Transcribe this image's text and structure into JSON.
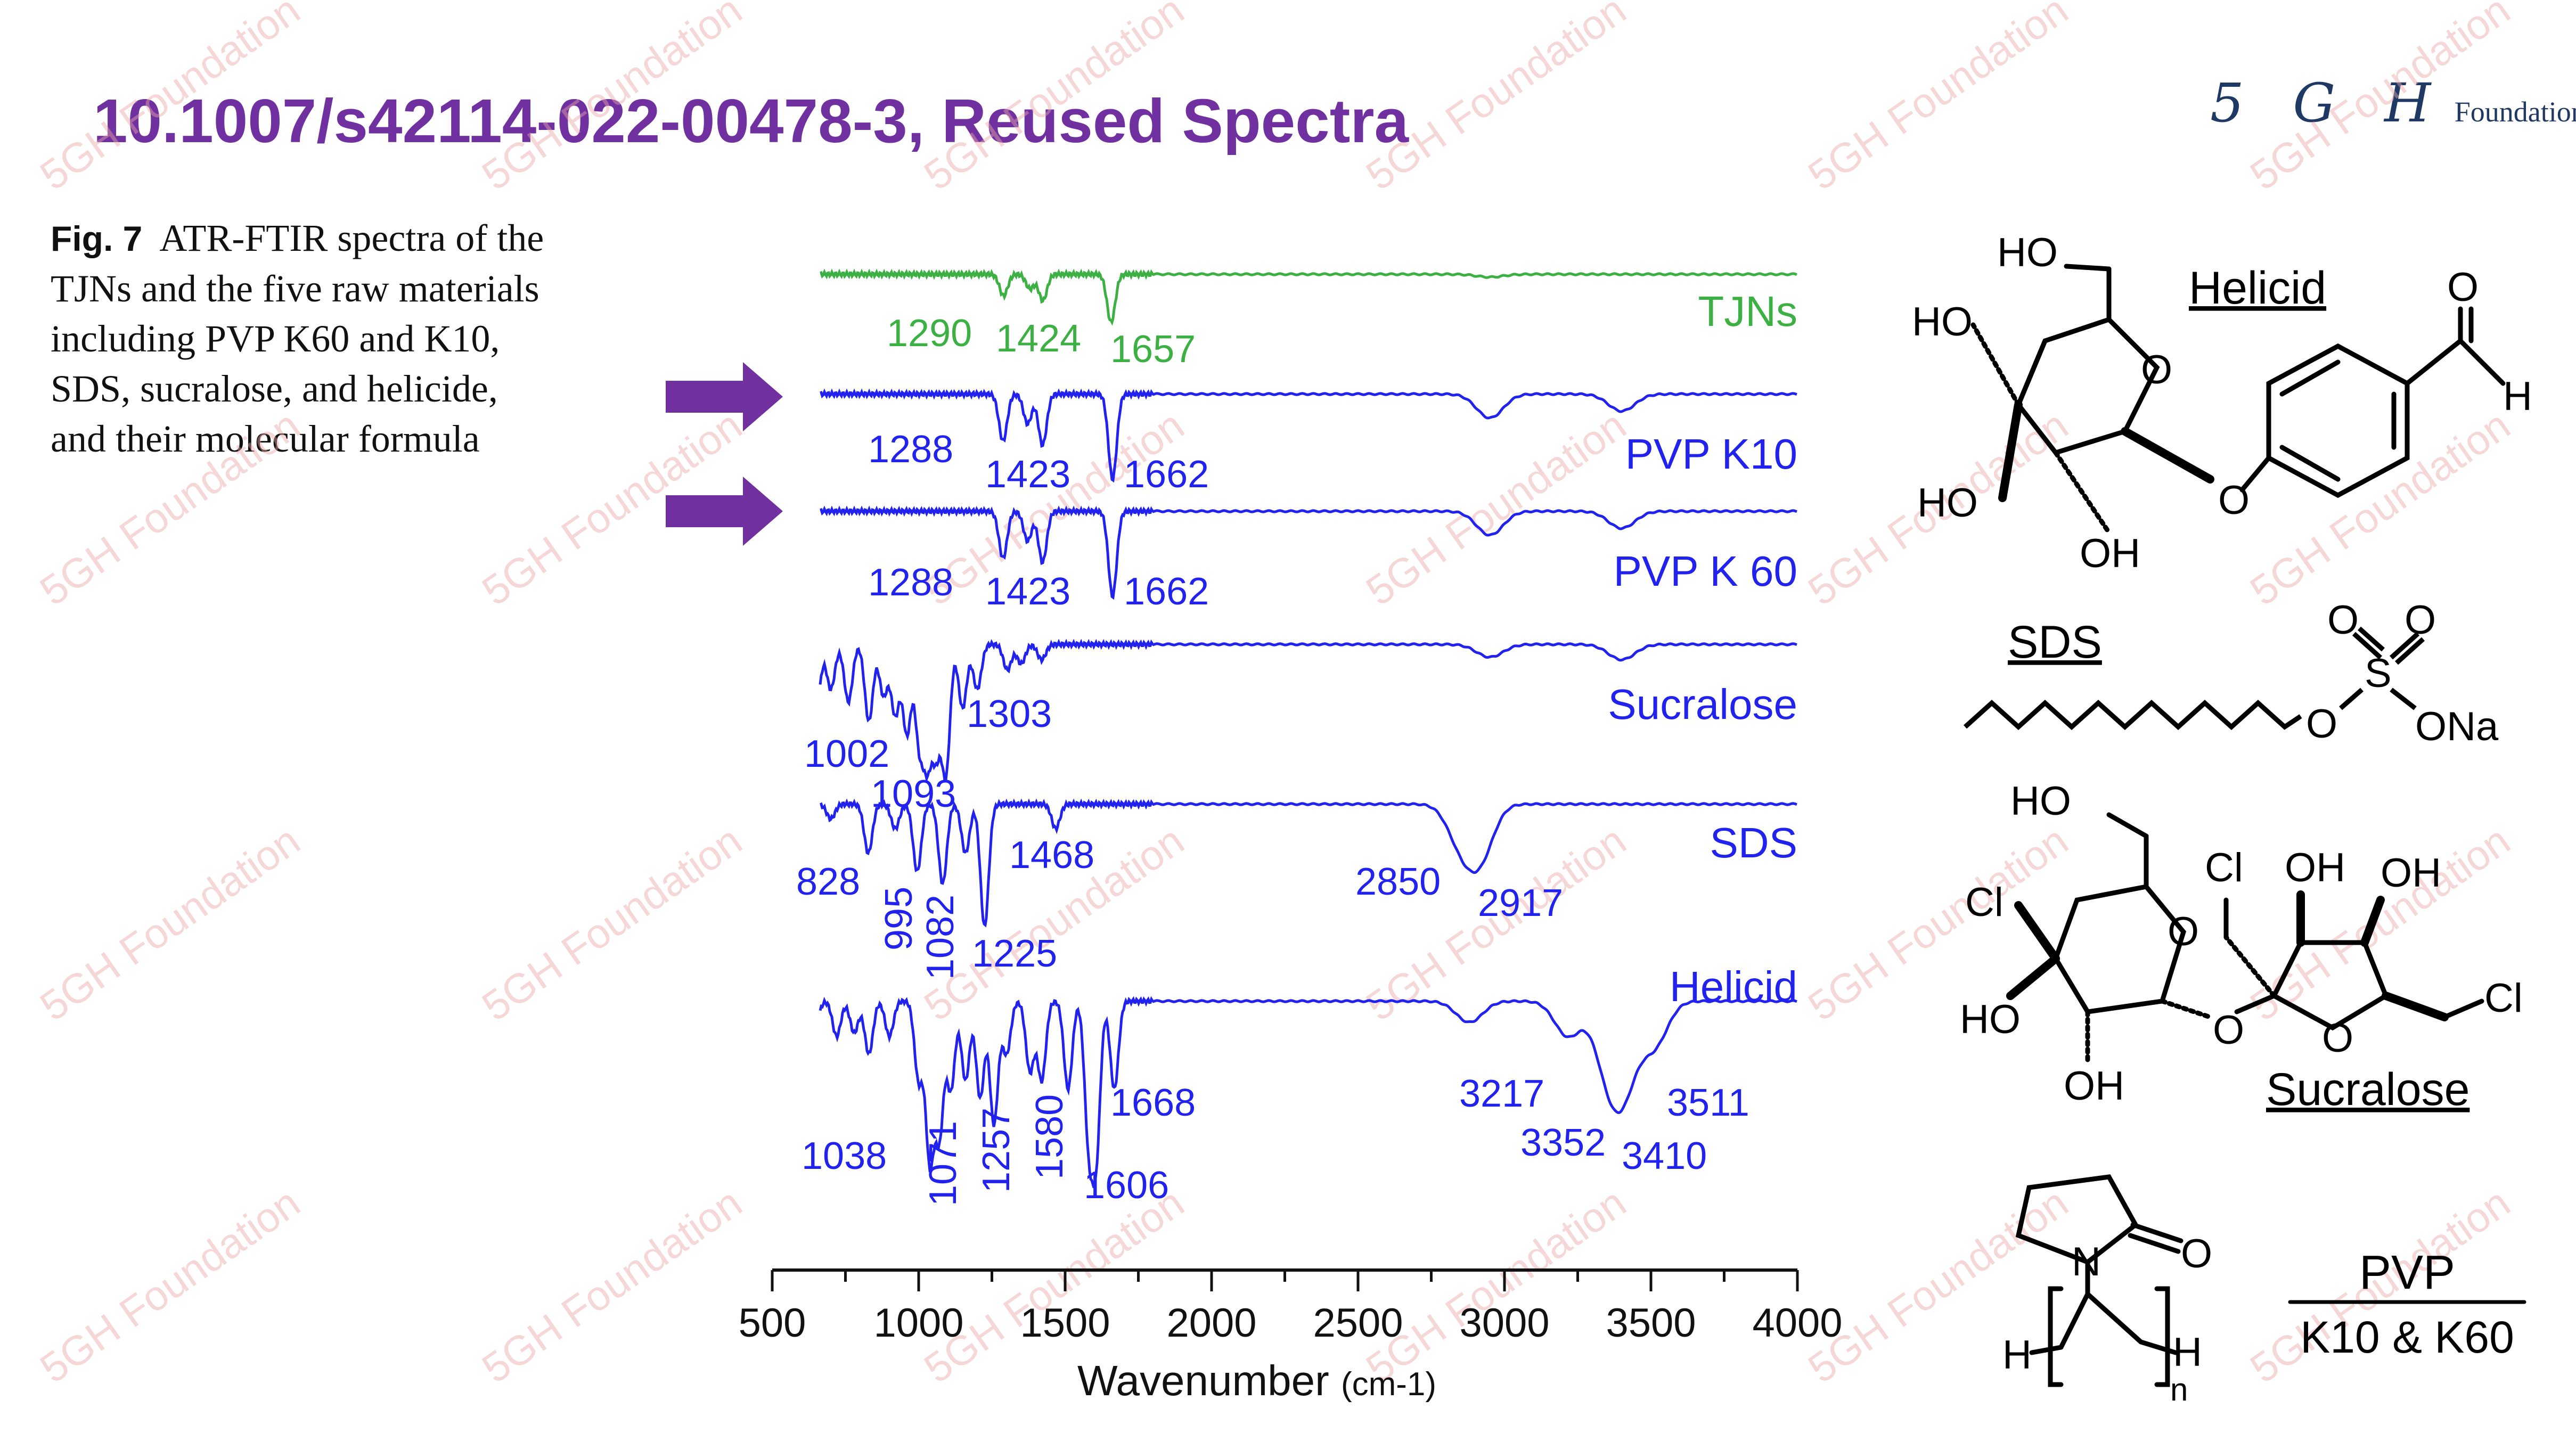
{
  "slide": {
    "title": "10.1007/s42114-022-00478-3, Reused Spectra",
    "logo_mark": "5 G H",
    "logo_text": "Foundation",
    "watermark": "5GH Foundation",
    "caption_fig": "Fig. 7",
    "caption_lines": [
      "ATR-FTIR spectra of the",
      "TJNs and the five raw materials",
      "including PVP K60 and K10,",
      "SDS, sucralose, and helicide,",
      "and their molecular formula"
    ],
    "arrow_color": "#7030A0",
    "title_color": "#7030A0"
  },
  "chart_data": {
    "type": "line",
    "title": "",
    "xlabel": "Wavenumber",
    "xlabel_unit": "(cm-1)",
    "ylabel": "",
    "xlim": [
      500,
      4000
    ],
    "xticks": [
      500,
      1000,
      1500,
      2000,
      2500,
      3000,
      3500,
      4000
    ],
    "series": [
      {
        "name": "TJNs",
        "color": "#3cb043",
        "baseline": 0.1,
        "peaks": [
          [
            1290,
            0.45
          ],
          [
            1380,
            0.3
          ],
          [
            1424,
            0.55
          ],
          [
            1657,
            1.0
          ],
          [
            2950,
            0.06
          ]
        ],
        "labels": [
          "1290",
          "1424",
          "1657"
        ]
      },
      {
        "name": "PVP K10",
        "color": "#2222ee",
        "baseline": 0.1,
        "peaks": [
          [
            1288,
            0.55
          ],
          [
            1372,
            0.35
          ],
          [
            1423,
            0.6
          ],
          [
            1662,
            1.0
          ],
          [
            2950,
            0.28
          ],
          [
            3400,
            0.2
          ]
        ],
        "labels": [
          "1288",
          "1423",
          "1662"
        ]
      },
      {
        "name": "PVP K 60",
        "color": "#2222ee",
        "baseline": 0.1,
        "peaks": [
          [
            1288,
            0.55
          ],
          [
            1372,
            0.35
          ],
          [
            1423,
            0.6
          ],
          [
            1662,
            1.0
          ],
          [
            2950,
            0.28
          ],
          [
            3400,
            0.2
          ]
        ],
        "labels": [
          "1288",
          "1423",
          "1662"
        ]
      },
      {
        "name": "Sucralose",
        "color": "#2222ee",
        "baseline": 0.05,
        "peaks": [
          [
            600,
            0.4
          ],
          [
            650,
            0.5
          ],
          [
            700,
            0.35
          ],
          [
            760,
            0.45
          ],
          [
            830,
            0.6
          ],
          [
            880,
            0.4
          ],
          [
            920,
            0.55
          ],
          [
            960,
            0.7
          ],
          [
            1002,
            0.75
          ],
          [
            1030,
            0.85
          ],
          [
            1060,
            0.8
          ],
          [
            1093,
            1.0
          ],
          [
            1150,
            0.5
          ],
          [
            1200,
            0.35
          ],
          [
            1303,
            0.2
          ],
          [
            1350,
            0.15
          ],
          [
            1420,
            0.12
          ],
          [
            2950,
            0.1
          ],
          [
            3400,
            0.12
          ]
        ],
        "labels": [
          "1002",
          "1093",
          "1303"
        ]
      },
      {
        "name": "SDS",
        "color": "#2222ee",
        "baseline": 0.05,
        "peaks": [
          [
            630,
            0.15
          ],
          [
            700,
            0.12
          ],
          [
            828,
            0.4
          ],
          [
            920,
            0.2
          ],
          [
            995,
            0.55
          ],
          [
            1082,
            0.65
          ],
          [
            1160,
            0.4
          ],
          [
            1225,
            1.0
          ],
          [
            1468,
            0.2
          ],
          [
            2850,
            0.3
          ],
          [
            2917,
            0.42
          ]
        ],
        "labels": [
          "828",
          "995",
          "1082",
          "1225",
          "1468",
          "2850",
          "2917"
        ]
      },
      {
        "name": "Helicid",
        "color": "#2222ee",
        "baseline": 0.05,
        "peaks": [
          [
            560,
            0.15
          ],
          [
            640,
            0.25
          ],
          [
            720,
            0.2
          ],
          [
            780,
            0.18
          ],
          [
            830,
            0.3
          ],
          [
            900,
            0.2
          ],
          [
            1000,
            0.45
          ],
          [
            1038,
            0.9
          ],
          [
            1071,
            0.75
          ],
          [
            1110,
            0.5
          ],
          [
            1160,
            0.45
          ],
          [
            1210,
            0.55
          ],
          [
            1257,
            0.7
          ],
          [
            1300,
            0.3
          ],
          [
            1380,
            0.4
          ],
          [
            1420,
            0.45
          ],
          [
            1510,
            0.5
          ],
          [
            1580,
            0.75
          ],
          [
            1606,
            0.85
          ],
          [
            1668,
            0.5
          ],
          [
            2880,
            0.12
          ],
          [
            3217,
            0.2
          ],
          [
            3352,
            0.35
          ],
          [
            3410,
            0.42
          ],
          [
            3511,
            0.25
          ]
        ],
        "labels": [
          "1038",
          "1071",
          "1257",
          "1580",
          "1606",
          "1668",
          "3217",
          "3352",
          "3410",
          "3511"
        ]
      }
    ]
  },
  "molecules": {
    "helicid": {
      "name": "Helicid",
      "atoms": [
        "HO",
        "HO",
        "O",
        "HO",
        "OH",
        "O",
        "O",
        "H"
      ]
    },
    "sds": {
      "name": "SDS",
      "atoms": [
        "O",
        "O",
        "S",
        "O",
        "ONa"
      ]
    },
    "sucralose": {
      "name": "Sucralose",
      "atoms": [
        "HO",
        "Cl",
        "O",
        "Cl",
        "OH",
        "OH",
        "HO",
        "O",
        "OH",
        "O",
        "Cl"
      ]
    },
    "pvp": {
      "atoms": [
        "N",
        "O",
        "H",
        "H",
        "n"
      ],
      "name": "PVP",
      "grade": "K10 & K60"
    }
  }
}
